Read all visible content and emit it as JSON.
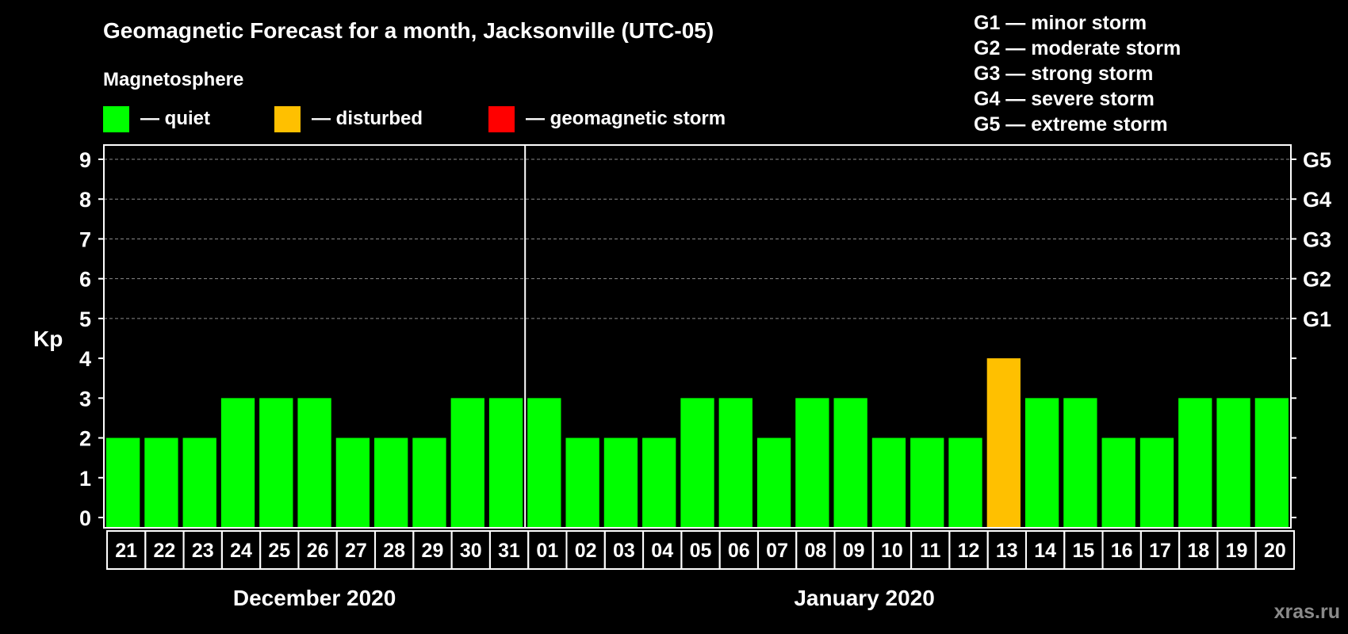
{
  "chart_data": {
    "type": "bar",
    "title": "Geomagnetic Forecast for a month, Jacksonville (UTC-05)",
    "ylabel": "Kp",
    "ylim": [
      0,
      9
    ],
    "yticks": [
      "0",
      "1",
      "2",
      "3",
      "4",
      "5",
      "6",
      "7",
      "8",
      "9"
    ],
    "right_axis_labels": [
      {
        "kp": 5,
        "label": "G1"
      },
      {
        "kp": 6,
        "label": "G2"
      },
      {
        "kp": 7,
        "label": "G3"
      },
      {
        "kp": 8,
        "label": "G4"
      },
      {
        "kp": 9,
        "label": "G5"
      }
    ],
    "legend": {
      "title": "Magnetosphere",
      "items": [
        {
          "label": "— quiet",
          "color": "#00ff00"
        },
        {
          "label": "— disturbed",
          "color": "#ffc000"
        },
        {
          "label": "— geomagnetic storm",
          "color": "#ff0000"
        }
      ]
    },
    "storm_scale": [
      "G1 — minor storm",
      "G2 — moderate storm",
      "G3 — strong storm",
      "G4 — severe storm",
      "G5 — extreme storm"
    ],
    "months": [
      {
        "label": "December 2020",
        "count": 11
      },
      {
        "label": "January 2020",
        "count": 20
      }
    ],
    "categories": [
      "21",
      "22",
      "23",
      "24",
      "25",
      "26",
      "27",
      "28",
      "29",
      "30",
      "31",
      "01",
      "02",
      "03",
      "04",
      "05",
      "06",
      "07",
      "08",
      "09",
      "10",
      "11",
      "12",
      "13",
      "14",
      "15",
      "16",
      "17",
      "18",
      "19",
      "20"
    ],
    "values": [
      2,
      2,
      2,
      3,
      3,
      3,
      2,
      2,
      2,
      3,
      3,
      3,
      2,
      2,
      2,
      3,
      3,
      2,
      3,
      3,
      2,
      2,
      2,
      4,
      3,
      3,
      2,
      2,
      3,
      3,
      3
    ],
    "thresholds": {
      "disturbed": 4,
      "storm": 5
    }
  },
  "watermark": "xras.ru"
}
